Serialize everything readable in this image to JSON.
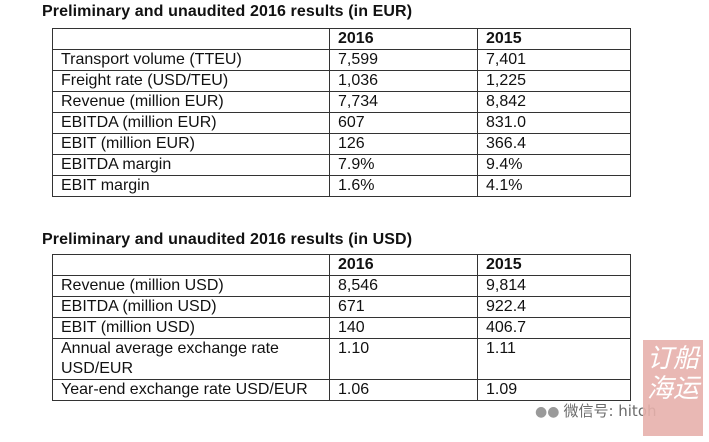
{
  "eur": {
    "title": "Preliminary and unaudited 2016 results (in EUR)",
    "header": [
      "",
      "2016",
      "2015"
    ],
    "rows": [
      [
        "Transport volume (TTEU)",
        "7,599",
        "7,401"
      ],
      [
        "Freight rate (USD/TEU)",
        "1,036",
        "1,225"
      ],
      [
        "Revenue (million EUR)",
        "7,734",
        "8,842"
      ],
      [
        "EBITDA (million EUR)",
        "607",
        "831.0"
      ],
      [
        "EBIT (million EUR)",
        "126",
        "366.4"
      ],
      [
        "EBITDA margin",
        "7.9%",
        "9.4%"
      ],
      [
        "EBIT margin",
        "1.6%",
        "4.1%"
      ]
    ]
  },
  "usd": {
    "title": "Preliminary and unaudited 2016 results (in USD)",
    "header": [
      "",
      "2016",
      "2015"
    ],
    "rows": [
      [
        "Revenue (million USD)",
        "8,546",
        "9,814"
      ],
      [
        "EBITDA (million USD)",
        "671",
        "922.4"
      ],
      [
        "EBIT (million USD)",
        "140",
        "406.7"
      ],
      [
        "Annual average exchange rate USD/EUR",
        "1.10",
        "1.11"
      ],
      [
        "Year-end exchange rate USD/EUR",
        "1.06",
        "1.09"
      ]
    ]
  },
  "watermark": {
    "label": "微信号: hitoh",
    "icon": "wechat-bubble-icon",
    "stamp_chars": "订船海运网",
    "stamp_color": "#e7b1ac"
  }
}
